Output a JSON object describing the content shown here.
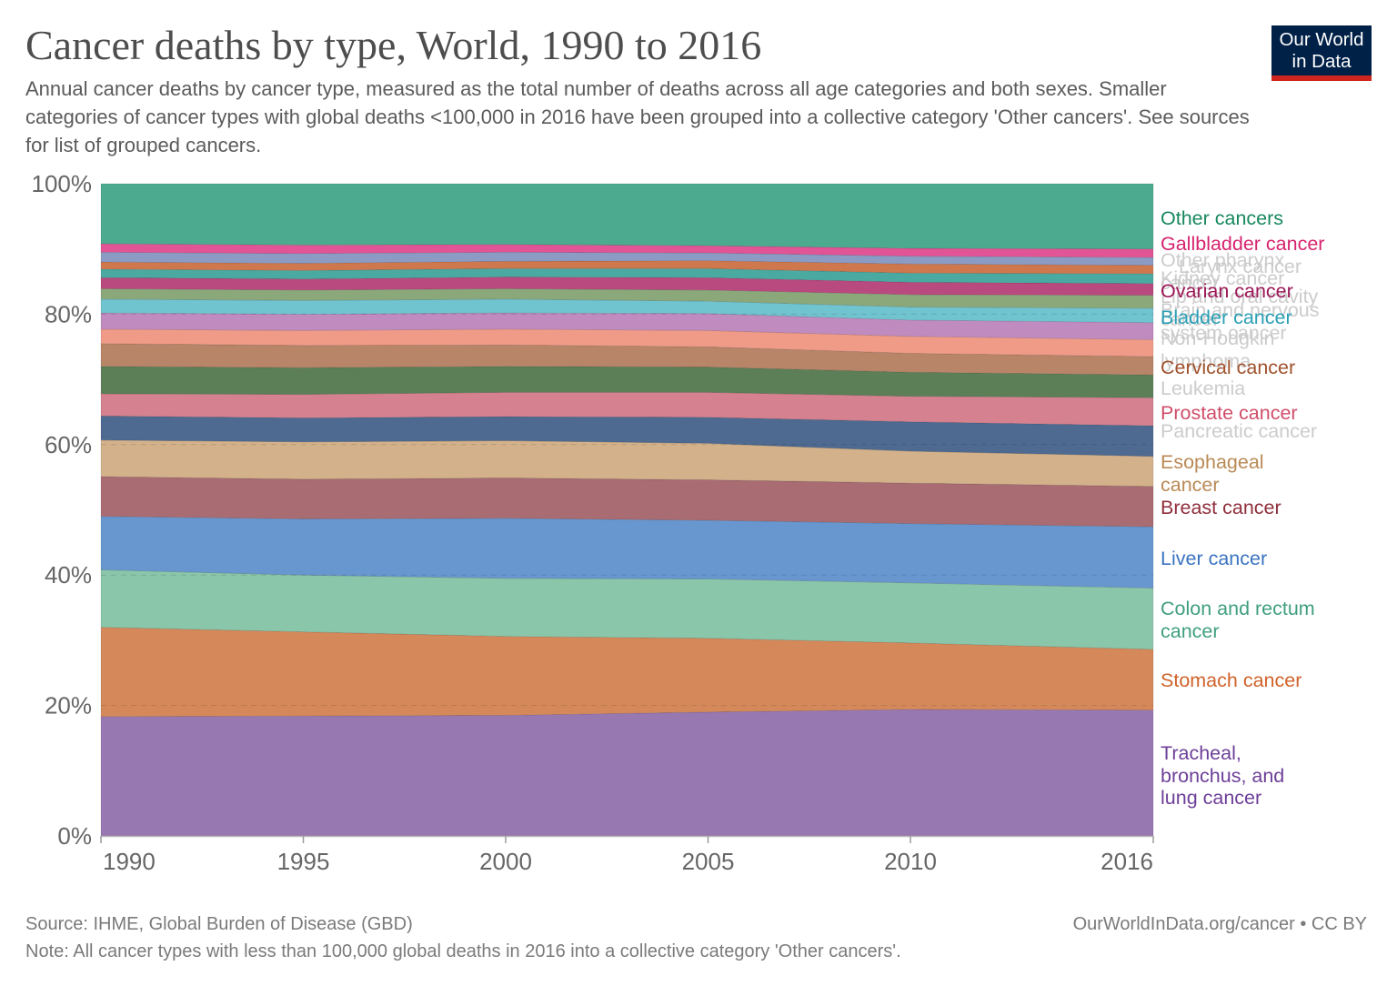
{
  "header": {
    "title": "Cancer deaths by type, World, 1990 to 2016",
    "subtitle": "Annual cancer deaths by cancer type, measured as the total number of deaths across all age categories and both sexes. Smaller categories of cancer types with global deaths <100,000 in 2016 have been grouped into a collective category 'Other cancers'. See sources for list of grouped cancers.",
    "logo_line1": "Our World",
    "logo_line2": "in Data",
    "logo_colors": {
      "background": "#002147",
      "bar": "#ce261e"
    }
  },
  "chart_data": {
    "type": "area",
    "stacked": true,
    "relative": true,
    "title": "Cancer deaths by type, World, 1990 to 2016",
    "xlabel": "",
    "ylabel": "",
    "unit": "%",
    "xlim": [
      1990,
      2016
    ],
    "ylim": [
      0,
      100
    ],
    "grid": "horizontal dashed",
    "legend": "right (inline labels)",
    "x": [
      1990,
      1995,
      2000,
      2005,
      2010,
      2016
    ],
    "xtick_values": [
      1990,
      1995,
      2000,
      2005,
      2010,
      2016
    ],
    "xticks": [
      "1990",
      "1995",
      "2000",
      "2005",
      "2010",
      "2016"
    ],
    "ytick_values": [
      0,
      20,
      40,
      60,
      80,
      100
    ],
    "yticks": [
      "0%",
      "20%",
      "40%",
      "60%",
      "80%",
      "100%"
    ],
    "series": [
      {
        "name": "Tracheal, bronchus, and lung cancer",
        "color": "#9878b1",
        "label_color": "#6d3f98",
        "label_muted": false,
        "values": [
          18.3,
          18.4,
          18.5,
          19.0,
          19.4,
          19.3
        ]
      },
      {
        "name": "Stomach cancer",
        "color": "#d5895b",
        "label_color": "#d0632b",
        "label_muted": false,
        "values": [
          13.7,
          12.9,
          12.1,
          11.3,
          10.2,
          9.3
        ]
      },
      {
        "name": "Colon and rectum cancer",
        "color": "#8ac6aa",
        "label_color": "#3f9f7d",
        "label_muted": false,
        "values": [
          8.8,
          8.7,
          8.9,
          9.1,
          9.2,
          9.4
        ]
      },
      {
        "name": "Liver cancer",
        "color": "#6897d0",
        "label_color": "#3b74c1",
        "label_muted": false,
        "values": [
          8.2,
          8.6,
          9.2,
          9.0,
          9.1,
          9.4
        ]
      },
      {
        "name": "Breast cancer",
        "color": "#a86c72",
        "label_color": "#8f2e3c",
        "label_muted": false,
        "values": [
          6.1,
          6.1,
          6.2,
          6.2,
          6.2,
          6.2
        ]
      },
      {
        "name": "Esophageal cancer",
        "color": "#d3b18b",
        "label_color": "#b98a56",
        "label_muted": false,
        "values": [
          5.6,
          5.7,
          5.7,
          5.6,
          4.9,
          4.6
        ]
      },
      {
        "name": "Pancreatic cancer",
        "color": "#4e6a91",
        "label_color": "#cccccc",
        "label_muted": true,
        "values": [
          3.7,
          3.7,
          3.7,
          4.0,
          4.5,
          4.7
        ]
      },
      {
        "name": "Prostate cancer",
        "color": "#d6818f",
        "label_color": "#cf4e69",
        "label_muted": false,
        "values": [
          3.4,
          3.6,
          3.7,
          3.8,
          3.9,
          4.3
        ]
      },
      {
        "name": "Leukemia",
        "color": "#5c7f58",
        "label_color": "#cccccc",
        "label_muted": true,
        "values": [
          4.2,
          4.1,
          4.0,
          3.9,
          3.7,
          3.5
        ]
      },
      {
        "name": "Cervical cancer",
        "color": "#b88568",
        "label_color": "#a0522d",
        "label_muted": false,
        "values": [
          3.5,
          3.4,
          3.3,
          3.1,
          2.9,
          2.8
        ]
      },
      {
        "name": "Non-Hodgkin lymphoma",
        "color": "#f09b88",
        "label_color": "#cccccc",
        "label_muted": true,
        "values": [
          2.2,
          2.3,
          2.4,
          2.5,
          2.6,
          2.6
        ]
      },
      {
        "name": "Brain and nervous system cancer",
        "color": "#c08bbf",
        "label_color": "#cccccc",
        "label_muted": true,
        "values": [
          2.5,
          2.5,
          2.5,
          2.6,
          2.5,
          2.6
        ]
      },
      {
        "name": "Bladder cancer",
        "color": "#70c4d0",
        "label_color": "#2ba0b6",
        "label_muted": false,
        "values": [
          2.1,
          2.1,
          2.1,
          1.9,
          2.0,
          2.2
        ]
      },
      {
        "name": "Lip and oral cavity cancer",
        "color": "#8ba87b",
        "label_color": "#cccccc",
        "label_muted": true,
        "values": [
          1.6,
          1.6,
          1.6,
          1.7,
          1.9,
          2.0
        ]
      },
      {
        "name": "Ovarian cancer",
        "color": "#b94a7f",
        "label_color": "#9b1656",
        "label_muted": false,
        "values": [
          1.7,
          1.7,
          1.8,
          1.9,
          1.9,
          1.8
        ]
      },
      {
        "name": "Kidney cancer",
        "color": "#4aaaa2",
        "label_color": "#cccccc",
        "label_muted": true,
        "values": [
          1.3,
          1.3,
          1.3,
          1.4,
          1.4,
          1.5
        ]
      },
      {
        "name": "Larynx cancer",
        "color": "#d0784d",
        "label_color": "#cccccc",
        "label_muted": true,
        "values": [
          1.1,
          1.1,
          1.1,
          1.2,
          1.4,
          1.3
        ]
      },
      {
        "name": "Other pharynx cancer",
        "color": "#8c9bc4",
        "label_color": "#cccccc",
        "label_muted": true,
        "values": [
          1.5,
          1.5,
          1.4,
          1.2,
          1.2,
          1.2
        ]
      },
      {
        "name": "Gallbladder cancer",
        "color": "#e15597",
        "label_color": "#d6246e",
        "label_muted": false,
        "values": [
          1.3,
          1.3,
          1.2,
          1.1,
          1.2,
          1.3
        ]
      },
      {
        "name": "Other cancers",
        "color": "#4caa8f",
        "label_color": "#17885e",
        "label_muted": false,
        "values": [
          9.2,
          9.4,
          9.3,
          9.5,
          9.9,
          10.0
        ]
      }
    ]
  },
  "footer": {
    "source": "Source: IHME, Global Burden of Disease (GBD)",
    "url": "OurWorldInData.org/cancer • CC BY",
    "note": "Note: All cancer types with less than 100,000 global deaths in 2016 into a collective category 'Other cancers'."
  }
}
